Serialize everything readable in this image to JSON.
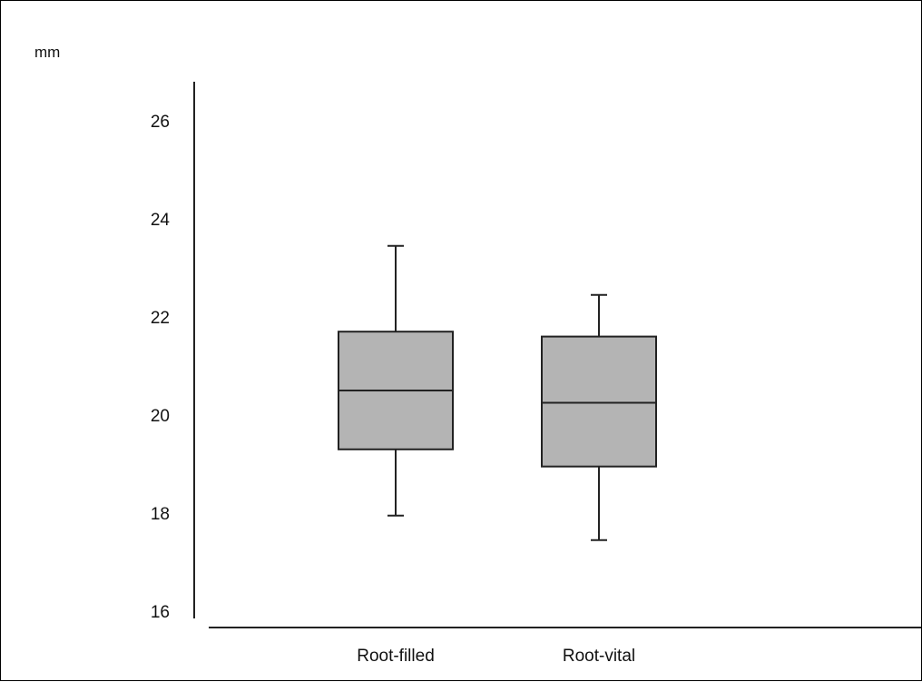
{
  "chart_data": {
    "type": "boxplot",
    "ylabel": "mm",
    "ylim": [
      16,
      26.8
    ],
    "yticks": [
      16,
      18,
      20,
      22,
      24,
      26
    ],
    "categories": [
      "Root-filled",
      "Root-vital"
    ],
    "boxes": [
      {
        "category": "Root-filled",
        "whisker_low": 17.95,
        "q1": 19.3,
        "median": 20.5,
        "q3": 21.7,
        "whisker_high": 23.45
      },
      {
        "category": "Root-vital",
        "whisker_low": 17.45,
        "q1": 18.95,
        "median": 20.25,
        "q3": 21.6,
        "whisker_high": 22.45
      }
    ],
    "grid": false,
    "legend": "none",
    "colors": {
      "box_fill": "#b4b4b4",
      "stroke": "#222222"
    }
  }
}
